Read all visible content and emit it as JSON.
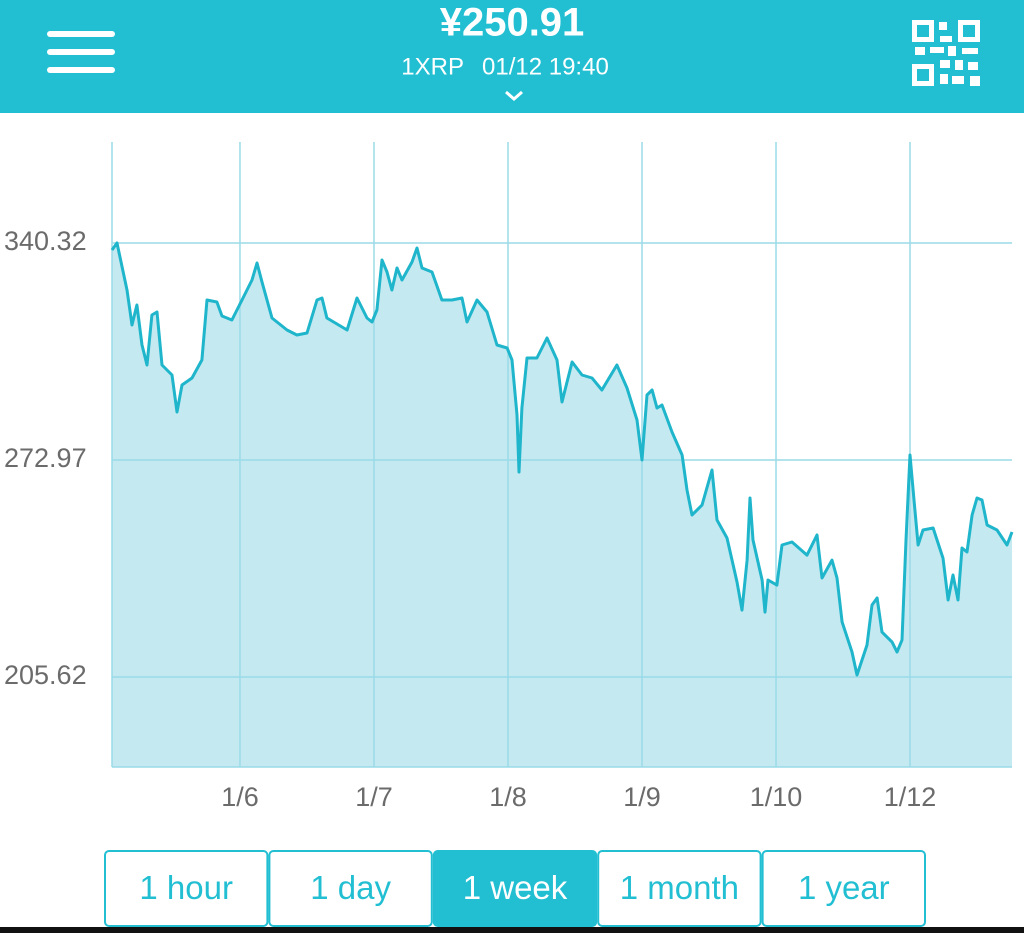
{
  "header": {
    "price": "¥250.91",
    "unit": "1XRP",
    "timestamp": "01/12 19:40"
  },
  "chart_data": {
    "type": "area",
    "color": "#1fb5cb",
    "fill_color": "#c4e9f1",
    "grid": true,
    "x": [
      -0.955,
      -0.918,
      -0.843,
      -0.806,
      -0.769,
      -0.731,
      -0.694,
      -0.657,
      -0.619,
      -0.582,
      -0.507,
      -0.47,
      -0.433,
      -0.358,
      -0.284,
      -0.246,
      -0.172,
      -0.134,
      -0.06,
      0.015,
      0.09,
      0.127,
      0.164,
      0.239,
      0.351,
      0.425,
      0.5,
      0.575,
      0.612,
      0.649,
      0.799,
      0.873,
      0.948,
      0.985,
      1.022,
      1.06,
      1.097,
      1.134,
      1.172,
      1.209,
      1.284,
      1.321,
      1.358,
      1.433,
      1.507,
      1.582,
      1.657,
      1.694,
      1.769,
      1.843,
      1.918,
      1.993,
      2.03,
      2.067,
      2.082,
      2.104,
      2.142,
      2.216,
      2.291,
      2.366,
      2.403,
      2.478,
      2.552,
      2.627,
      2.701,
      2.813,
      2.888,
      2.963,
      3.0,
      3.037,
      3.075,
      3.112,
      3.149,
      3.224,
      3.299,
      3.336,
      3.373,
      3.448,
      3.522,
      3.56,
      3.634,
      3.709,
      3.746,
      3.784,
      3.806,
      3.828,
      3.896,
      3.918,
      3.94,
      4.007,
      4.045,
      4.119,
      4.231,
      4.306,
      4.343,
      4.418,
      4.455,
      4.493,
      4.567,
      4.604,
      4.679,
      4.716,
      4.754,
      4.791,
      4.866,
      4.903,
      4.94,
      4.97,
      5.0,
      5.03,
      5.06,
      5.097,
      5.172,
      5.246,
      5.284,
      5.321,
      5.358,
      5.388,
      5.425,
      5.463,
      5.5,
      5.537,
      5.575,
      5.649,
      5.724,
      5.761
    ],
    "values": [
      338.15,
      340.32,
      325.73,
      314.87,
      321.08,
      308.66,
      302.45,
      317.97,
      318.9,
      302.45,
      299.35,
      287.86,
      296.24,
      298.42,
      304.0,
      322.63,
      322.01,
      317.66,
      316.42,
      322.63,
      328.84,
      334.11,
      328.21,
      317.04,
      313.32,
      311.76,
      312.38,
      322.63,
      323.25,
      317.04,
      313.32,
      323.25,
      317.04,
      315.8,
      319.52,
      335.04,
      331.32,
      325.73,
      332.56,
      328.84,
      334.42,
      338.77,
      332.56,
      331.32,
      322.63,
      322.63,
      323.25,
      315.8,
      322.63,
      318.9,
      308.66,
      307.73,
      304.0,
      286.93,
      269.24,
      289.1,
      304.62,
      304.62,
      310.83,
      304.0,
      290.97,
      303.38,
      299.35,
      298.42,
      294.69,
      302.45,
      295.31,
      285.38,
      272.96,
      293.14,
      294.69,
      289.1,
      290.04,
      281.65,
      274.52,
      263.65,
      255.89,
      258.99,
      269.86,
      254.34,
      248.75,
      235.1,
      226.4,
      241.92,
      261.17,
      248.13,
      235.72,
      225.78,
      235.72,
      234.16,
      246.58,
      247.51,
      243.47,
      249.68,
      236.34,
      241.92,
      236.34,
      222.68,
      213.37,
      206.23,
      215.54,
      227.96,
      230.13,
      219.57,
      216.47,
      213.37,
      217.09,
      248.13,
      274.52,
      260.55,
      246.58,
      251.24,
      251.86,
      242.54,
      229.51,
      237.27,
      229.51,
      245.65,
      244.41,
      255.89,
      261.17,
      260.55,
      252.79,
      251.24,
      246.58,
      250.62
    ],
    "xlim": [
      -0.955,
      5.761
    ],
    "xticks": [
      {
        "value": 0,
        "label": "1/6"
      },
      {
        "value": 1,
        "label": "1/7"
      },
      {
        "value": 2,
        "label": "1/8"
      },
      {
        "value": 3,
        "label": "1/9"
      },
      {
        "value": 4,
        "label": "1/10"
      },
      {
        "value": 5,
        "label": "1/12"
      }
    ],
    "ylim": [
      177.69,
      371.67
    ],
    "yticks": [
      205.62,
      272.97,
      340.32
    ]
  },
  "range_buttons": {
    "labels": [
      "1 hour",
      "1 day",
      "1 week",
      "1 month",
      "1 year"
    ],
    "selected": 2
  }
}
